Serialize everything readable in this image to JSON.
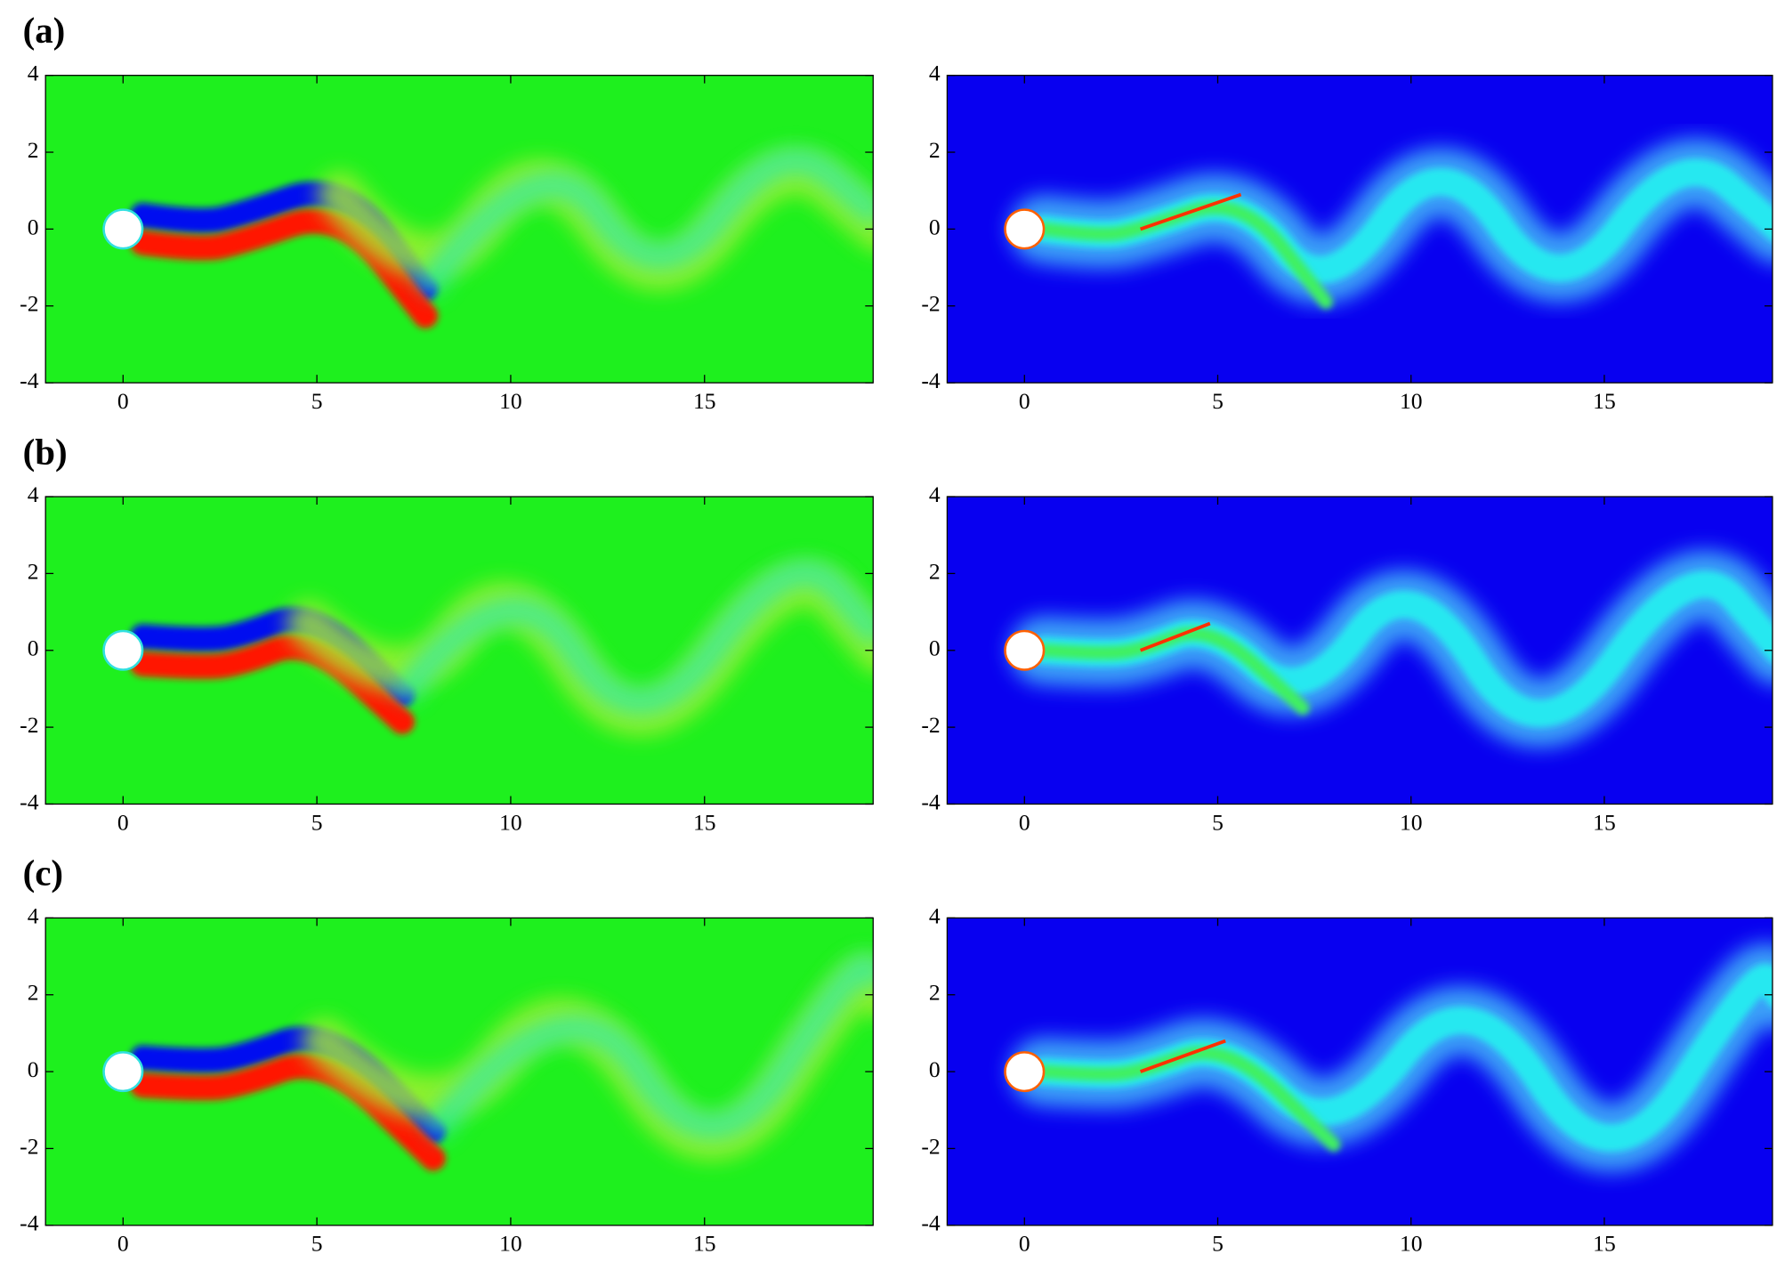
{
  "panels": [
    "(a)",
    "(b)",
    "(c)"
  ],
  "chart_data": [
    {
      "type": "contour",
      "color": "#1ef01e",
      "xlim": [
        -2,
        19.35
      ],
      "ylim": [
        -4,
        4
      ],
      "xticks": [
        0,
        5,
        10,
        15
      ],
      "yticks": [
        -4,
        -2,
        0,
        2,
        4
      ]
    },
    {
      "type": "contour",
      "color": "#0800f0",
      "xlim": [
        -2,
        19.35
      ],
      "ylim": [
        -4,
        4
      ],
      "xticks": [
        0,
        5,
        10,
        15
      ],
      "yticks": [
        -4,
        -2,
        0,
        2,
        4
      ]
    },
    {
      "type": "contour",
      "color": "#1ef01e",
      "xlim": [
        -2,
        19.35
      ],
      "ylim": [
        -4,
        4
      ],
      "xticks": [
        0,
        5,
        10,
        15
      ],
      "yticks": [
        -4,
        -2,
        0,
        2,
        4
      ]
    },
    {
      "type": "contour",
      "color": "#0800f0",
      "xlim": [
        -2,
        19.35
      ],
      "ylim": [
        -4,
        4
      ],
      "xticks": [
        0,
        5,
        10,
        15
      ],
      "yticks": [
        -4,
        -2,
        0,
        2,
        4
      ]
    },
    {
      "type": "contour",
      "color": "#1ef01e",
      "xlim": [
        -2,
        19.35
      ],
      "ylim": [
        -4,
        4
      ],
      "xticks": [
        0,
        5,
        10,
        15
      ],
      "yticks": [
        -4,
        -2,
        0,
        2,
        4
      ]
    },
    {
      "type": "contour",
      "color": "#0800f0",
      "xlim": [
        -2,
        19.35
      ],
      "ylim": [
        -4,
        4
      ],
      "xticks": [
        0,
        5,
        10,
        15
      ],
      "yticks": [
        -4,
        -2,
        0,
        2,
        4
      ]
    }
  ]
}
